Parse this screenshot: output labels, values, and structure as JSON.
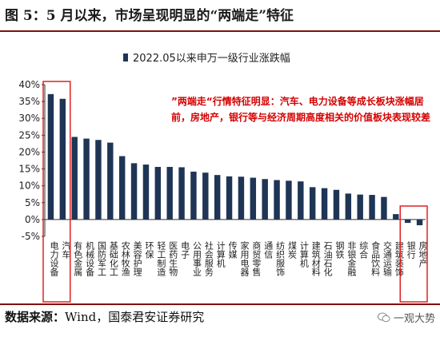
{
  "figure_title": "图 5：5 月以来，市场呈现明显的“两端走”特征",
  "source": {
    "label": "数据来源：",
    "text": "Wind，国泰君安证券研究"
  },
  "watermark": {
    "text": "一观大势",
    "icon": "wechat-icon"
  },
  "annotation": "”两端走“行情特征明显：汽车、电力设备等成长板块涨幅居前，房地产，银行等与经济周期高度相关的价值板块表现较差",
  "colors": {
    "bar": "#1f3555",
    "highlight_box": "#e02020",
    "annotation": "#d40000",
    "rule": "#7f1010"
  },
  "chart_data": {
    "type": "bar",
    "series": [
      {
        "name": "2022.05以来申万一级行业涨跌幅",
        "values": [
          37.2,
          35.8,
          24.5,
          24.0,
          23.6,
          22.8,
          18.8,
          16.7,
          16.3,
          15.6,
          15.6,
          15.5,
          14.2,
          13.9,
          13.2,
          12.8,
          12.7,
          12.4,
          12.0,
          11.7,
          11.5,
          11.3,
          9.6,
          9.3,
          8.8,
          7.7,
          7.4,
          7.3,
          6.7,
          1.6,
          -1.0,
          -1.7
        ]
      }
    ],
    "categories": [
      "电力设备",
      "汽车",
      "有色金属",
      "机械设备",
      "国防军工",
      "基础化工",
      "农林牧渔",
      "美容护理",
      "环保",
      "轻工制造",
      "医药生物",
      "电子",
      "公用事业",
      "社会服务",
      "计算机",
      "传媒",
      "家用电器",
      "商贸零售",
      "通信",
      "纺织服饰",
      "煤炭",
      "计算机",
      "建筑材料",
      "石油石化",
      "钢铁",
      "非银金融",
      "综合",
      "食品饮料",
      "交通运输",
      "建筑装饰",
      "银行",
      "房地产"
    ],
    "yticks": [
      "-5%",
      "0%",
      "5%",
      "10%",
      "15%",
      "20%",
      "25%",
      "30%",
      "35%",
      "40%"
    ],
    "ylim": [
      -5,
      40
    ],
    "legend_position": "top-center",
    "grid": false,
    "highlight_groups": [
      [
        0,
        1
      ],
      [
        30,
        31
      ]
    ]
  }
}
